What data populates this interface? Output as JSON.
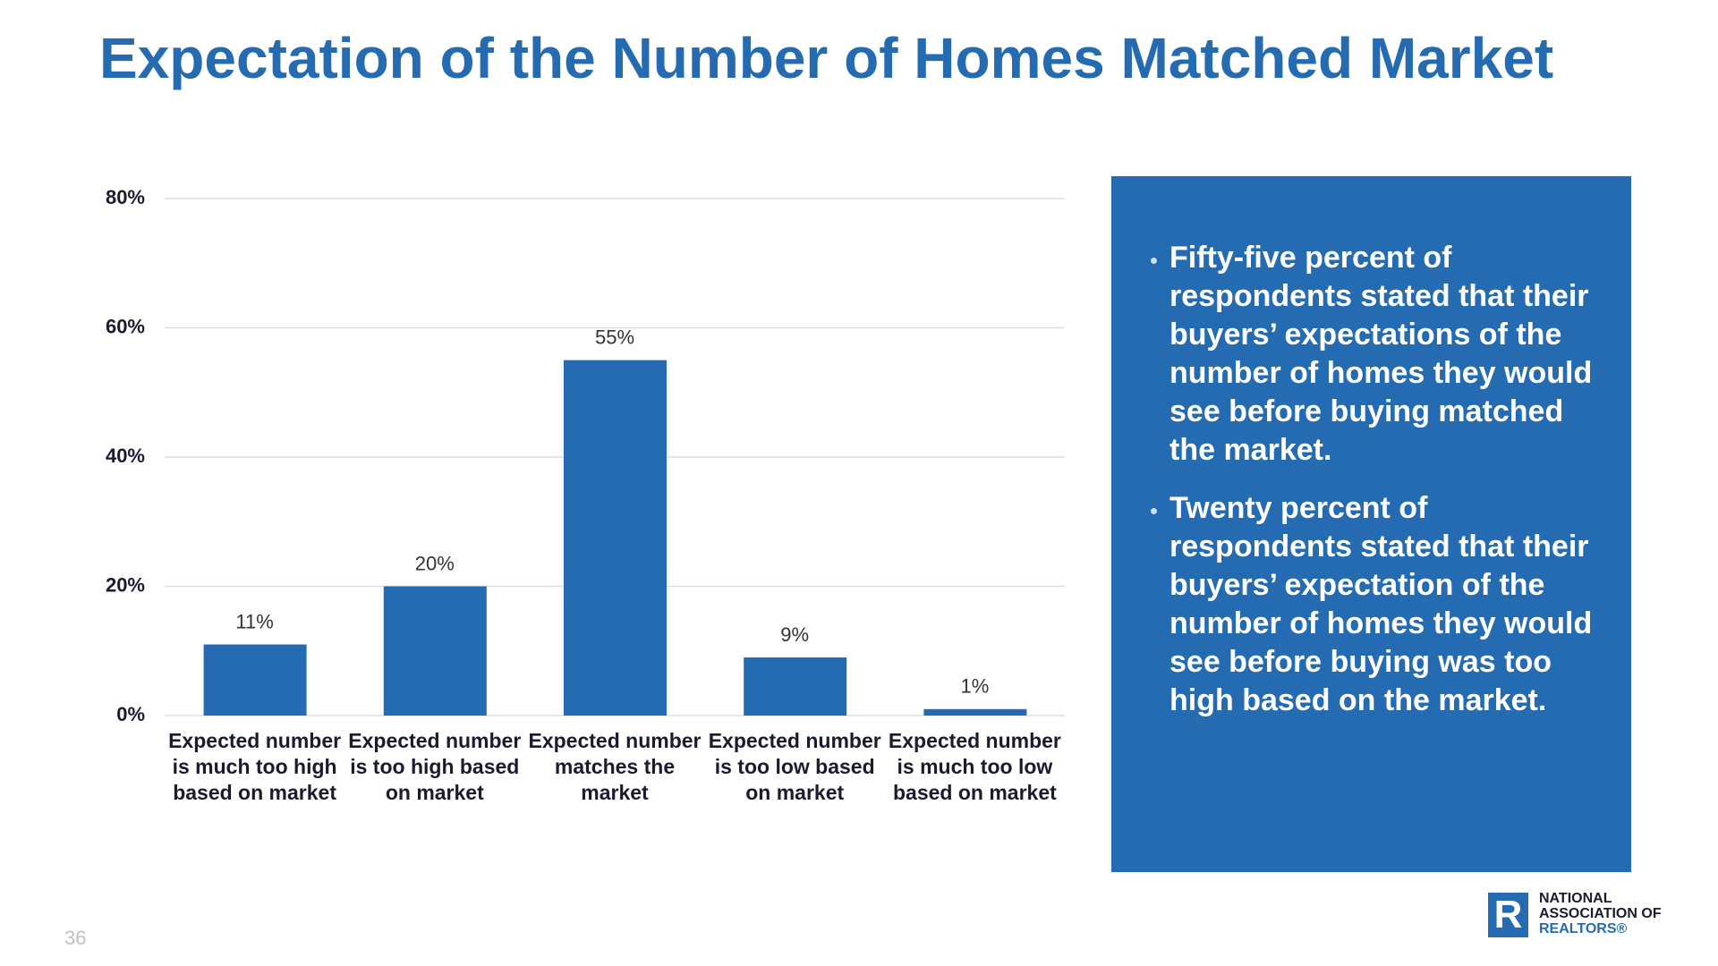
{
  "chart_data": {
    "type": "bar",
    "title": "Expectation of the Number of Homes Matched Market",
    "categories": [
      "Expected number is much too high based on market",
      "Expected number is too high based on market",
      "Expected number matches the market",
      "Expected number is too low based on market",
      "Expected number is much too low based on market"
    ],
    "values": [
      11,
      20,
      55,
      9,
      1
    ],
    "value_labels": [
      "11%",
      "20%",
      "55%",
      "9%",
      "1%"
    ],
    "color": "#246bb2",
    "ylim": [
      0,
      80
    ],
    "yticks": [
      {
        "value": 0,
        "label": "0%"
      },
      {
        "value": 20,
        "label": "20%"
      },
      {
        "value": 40,
        "label": "40%"
      },
      {
        "value": 60,
        "label": "60%"
      },
      {
        "value": 80,
        "label": "80%"
      }
    ],
    "grid": true
  },
  "bullets": [
    "Fifty-five percent of respondents stated that their buyers’ expectations of the number of homes they would see before buying matched the market.",
    "Twenty percent of respondents stated that their buyers’ expectation of the number of homes they would see before buying was too high based on the market."
  ],
  "page_number": "36",
  "logo": {
    "mark": "R",
    "lines": [
      "NATIONAL",
      "ASSOCIATION OF",
      "REALTORS®"
    ]
  }
}
